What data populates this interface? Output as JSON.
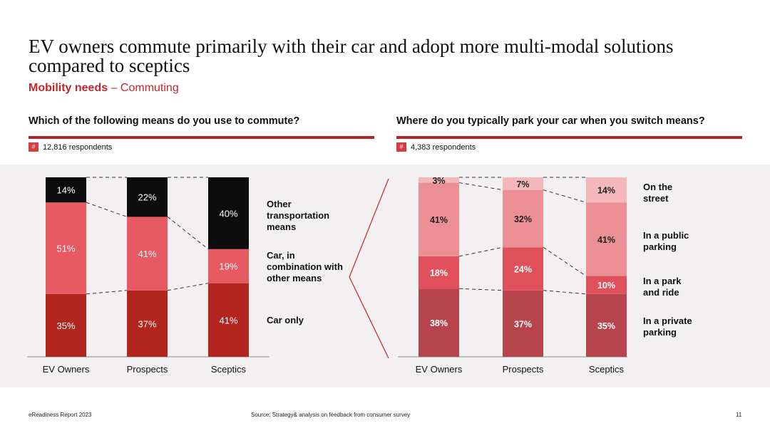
{
  "title": "EV owners commute primarily with their car and adopt more multi-modal solutions compared to sceptics",
  "subtitle_bold": "Mobility needs",
  "subtitle_rest": " – Commuting",
  "left_question": "Which of the following means do you use to commute?",
  "right_question": "Where do you typically park your car when you switch means?",
  "left_respondents": "12,816 respondents",
  "right_respondents": "4,383 respondents",
  "hash_symbol": "#",
  "footer_left": "eReadiness Report 2023",
  "footer_source": "Source: Strategy& analysis on feedback from consumer survey",
  "footer_page": "11",
  "chart_data": [
    {
      "type": "bar",
      "stacked": true,
      "categories": [
        "EV Owners",
        "Prospects",
        "Sceptics"
      ],
      "series": [
        {
          "name": "Car only",
          "values": [
            35,
            37,
            41
          ],
          "color": "#b3261e",
          "label_color": "#ffffff"
        },
        {
          "name": "Car, in combination with other means",
          "values": [
            51,
            41,
            19
          ],
          "color": "#e85a62",
          "label_color": "#ffffff"
        },
        {
          "name": "Other transportation means",
          "values": [
            14,
            22,
            40
          ],
          "color": "#0d0d0d",
          "label_color": "#ffffff"
        }
      ],
      "ylim": [
        0,
        100
      ]
    },
    {
      "type": "bar",
      "stacked": true,
      "categories": [
        "EV Owners",
        "Prospects",
        "Sceptics"
      ],
      "series": [
        {
          "name": "In a private parking",
          "values": [
            38,
            37,
            35
          ],
          "color": "#b7434d",
          "label_color": "#ffffff"
        },
        {
          "name": "In a park and ride",
          "values": [
            18,
            24,
            10
          ],
          "color": "#e0505b",
          "label_color": "#ffffff"
        },
        {
          "name": "In a public parking",
          "values": [
            41,
            32,
            41
          ],
          "color": "#ec8f95",
          "label_color": "#222222"
        },
        {
          "name": "On the street",
          "values": [
            3,
            7,
            14
          ],
          "color": "#f4b8bc",
          "label_color": "#222222"
        }
      ],
      "ylim": [
        0,
        100
      ]
    }
  ]
}
